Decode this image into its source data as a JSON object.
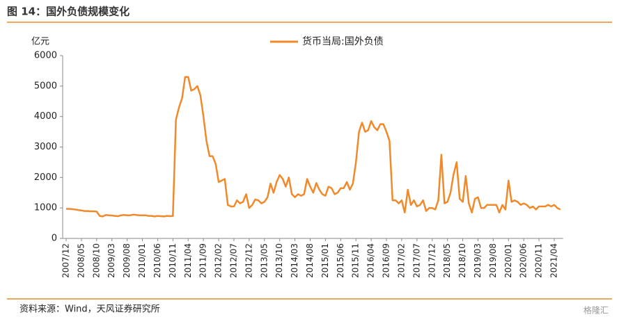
{
  "chart_data": {
    "type": "line",
    "title": "图 14：国外负债规模变化",
    "y_label": "亿元",
    "source": "资料来源：Wind，天风证券研究所",
    "watermark": "格隆汇",
    "categories": [
      "2007/12",
      null,
      null,
      null,
      null,
      "2008/05",
      null,
      null,
      null,
      null,
      "2008/10",
      null,
      null,
      null,
      null,
      "2009/03",
      null,
      null,
      null,
      null,
      "2009/08",
      null,
      null,
      null,
      null,
      "2010/01",
      null,
      null,
      null,
      null,
      "2010/06",
      null,
      null,
      null,
      null,
      "2010/11",
      null,
      null,
      null,
      null,
      "2011/04",
      null,
      null,
      null,
      null,
      "2011/09",
      null,
      null,
      null,
      null,
      "2012/02",
      null,
      null,
      null,
      null,
      "2012/07",
      null,
      null,
      null,
      null,
      "2012/12",
      null,
      null,
      null,
      null,
      "2013/05",
      null,
      null,
      null,
      null,
      "2013/10",
      null,
      null,
      null,
      null,
      "2014/03",
      null,
      null,
      null,
      null,
      "2014/08",
      null,
      null,
      null,
      null,
      "2015/01",
      null,
      null,
      null,
      null,
      "2015/06",
      null,
      null,
      null,
      null,
      "2015/11",
      null,
      null,
      null,
      null,
      "2016/04",
      null,
      null,
      null,
      null,
      "2016/09",
      null,
      null,
      null,
      null,
      "2017/02",
      null,
      null,
      null,
      null,
      "2017/07",
      null,
      null,
      null,
      null,
      "2017/12",
      null,
      null,
      null,
      null,
      "2018/05",
      null,
      null,
      null,
      null,
      "2018/10",
      null,
      null,
      null,
      null,
      "2019/03",
      null,
      null,
      null,
      null,
      "2019/08",
      null,
      null,
      null,
      null,
      "2020/01",
      null,
      null,
      null,
      null,
      "2020/06",
      null,
      null,
      null,
      null,
      "2020/11",
      null,
      null,
      null,
      null,
      "2021/04",
      null,
      null
    ],
    "series": [
      {
        "name": "货币当局:国外负债",
        "color": "#f0892a",
        "values": [
          970,
          970,
          960,
          950,
          930,
          920,
          900,
          900,
          890,
          890,
          880,
          740,
          720,
          770,
          760,
          750,
          740,
          730,
          760,
          770,
          760,
          760,
          780,
          770,
          760,
          760,
          760,
          740,
          740,
          720,
          740,
          730,
          720,
          740,
          730,
          740,
          3900,
          4300,
          4600,
          5300,
          5300,
          4850,
          4900,
          5000,
          4700,
          4000,
          3200,
          2700,
          2700,
          2450,
          1850,
          1900,
          1950,
          1100,
          1050,
          1050,
          1250,
          1150,
          1200,
          1450,
          1000,
          1100,
          1280,
          1250,
          1150,
          1200,
          1350,
          1800,
          1500,
          1850,
          2080,
          1950,
          1700,
          2000,
          1450,
          1350,
          1450,
          1400,
          1450,
          1950,
          1700,
          1500,
          1820,
          1600,
          1450,
          1400,
          1700,
          1650,
          1450,
          1500,
          1650,
          1650,
          1850,
          1600,
          1800,
          2500,
          3500,
          3800,
          3500,
          3550,
          3850,
          3650,
          3550,
          3750,
          3750,
          3500,
          3200,
          1250,
          1250,
          1150,
          1250,
          850,
          1600,
          1100,
          1250,
          1050,
          1100,
          1250,
          900,
          1000,
          1000,
          950,
          1250,
          2750,
          1150,
          1200,
          1500,
          2100,
          2500,
          1300,
          1200,
          2050,
          1150,
          850,
          1300,
          1350,
          1000,
          1000,
          1100,
          1100,
          1100,
          1100,
          850,
          1100,
          950,
          1900,
          1200,
          1250,
          1200,
          1100,
          1150,
          1100,
          1000,
          1050,
          950,
          1050,
          1050,
          1050,
          1100,
          1050,
          1100,
          1000,
          950
        ]
      }
    ],
    "ylim": [
      0,
      6000
    ],
    "yticks": [
      0,
      1000,
      2000,
      3000,
      4000,
      5000,
      6000
    ],
    "legend": "top"
  }
}
